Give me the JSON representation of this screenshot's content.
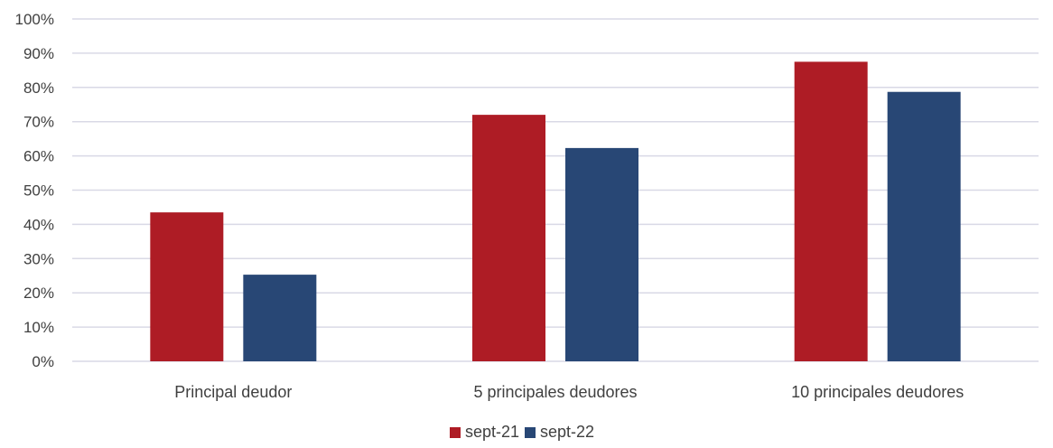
{
  "chart_data": {
    "type": "bar",
    "title": "",
    "xlabel": "",
    "ylabel": "",
    "categories": [
      "Principal deudor",
      "5 principales deudores",
      "10 principales deudores"
    ],
    "series": [
      {
        "name": "sept-21",
        "values": [
          43.5,
          72,
          87.5
        ],
        "color": "#ae1c25"
      },
      {
        "name": "sept-22",
        "values": [
          25.3,
          62.3,
          78.7
        ],
        "color": "#284775"
      }
    ],
    "ylim": [
      0,
      100
    ],
    "yticks": [
      0,
      10,
      20,
      30,
      40,
      50,
      60,
      70,
      80,
      90,
      100
    ],
    "ytick_labels": [
      "0%",
      "10%",
      "20%",
      "30%",
      "40%",
      "50%",
      "60%",
      "70%",
      "80%",
      "90%",
      "100%"
    ],
    "grid": true,
    "legend_position": "bottom-center"
  }
}
